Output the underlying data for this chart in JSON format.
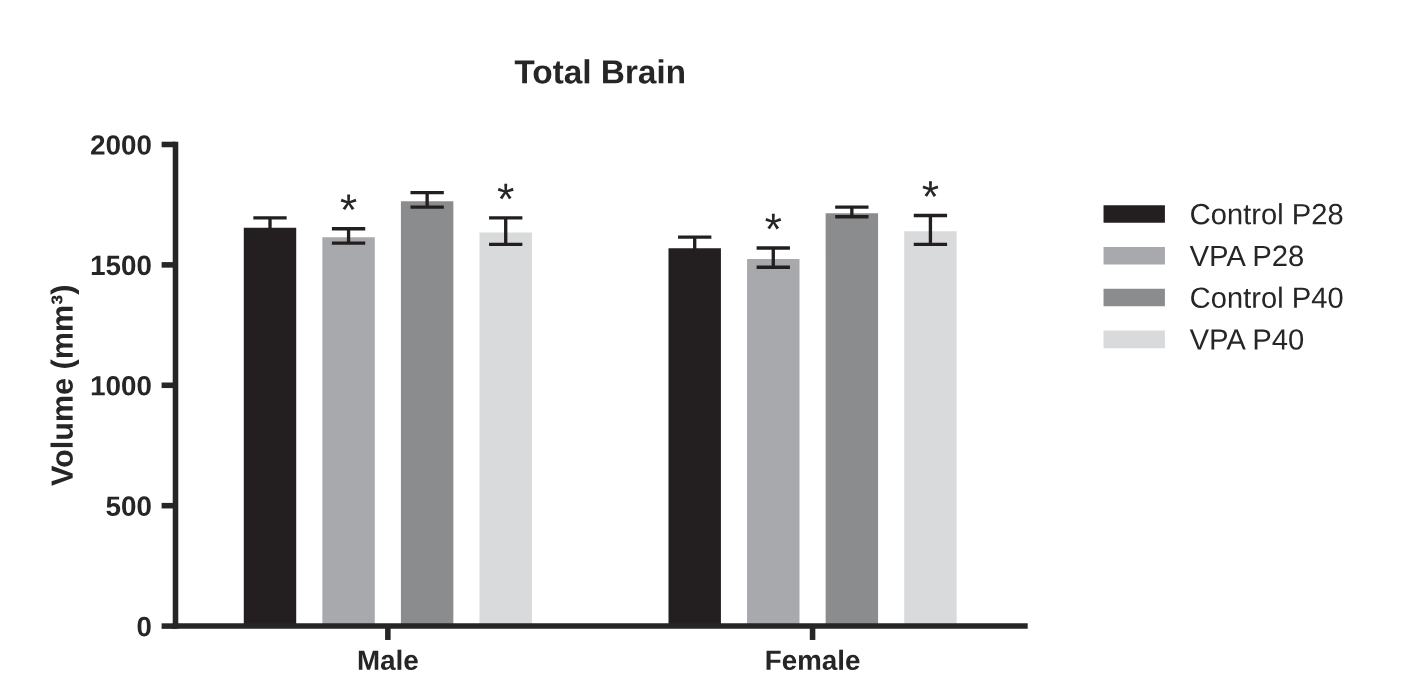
{
  "chart_data": {
    "type": "bar",
    "title": "Total Brain",
    "ylabel": "Volume (mm³)",
    "categories": [
      "Male",
      "Female"
    ],
    "series": [
      {
        "name": "Control P28",
        "color": "#231f20",
        "values": [
          1660,
          1575
        ],
        "errors": [
          35,
          40
        ]
      },
      {
        "name": "VPA P28",
        "color": "#a7a9ac",
        "values": [
          1620,
          1530
        ],
        "errors": [
          30,
          40
        ]
      },
      {
        "name": "Control P40",
        "color": "#8a8c8e",
        "values": [
          1770,
          1720
        ],
        "errors": [
          30,
          20
        ]
      },
      {
        "name": "VPA P40",
        "color": "#d9dadb",
        "values": [
          1640,
          1645
        ],
        "errors": [
          55,
          60
        ]
      }
    ],
    "annotations": [
      "*",
      "*",
      "*",
      "*"
    ],
    "ylim": [
      0,
      2000
    ],
    "yticks": [
      0,
      500,
      1000,
      1500,
      2000
    ],
    "legend": "right",
    "grid": false
  }
}
